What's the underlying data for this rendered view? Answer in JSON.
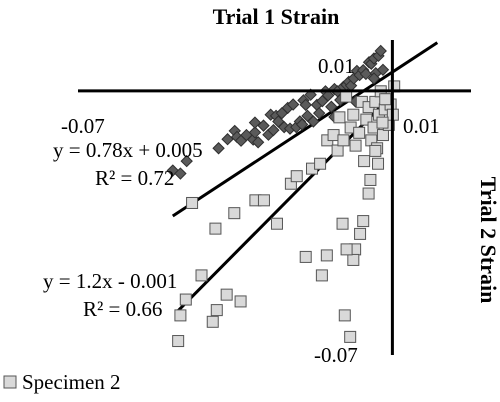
{
  "chart_data": {
    "type": "scatter",
    "xlabel": "Trial 1 Strain",
    "ylabel": "Trial 2 Strain",
    "xlim": [
      -0.07,
      0.0175
    ],
    "ylim": [
      -0.07,
      0.0135
    ],
    "axis_crossing": [
      0,
      0
    ],
    "tick_labels": {
      "x_min": "-0.07",
      "x_max": "0.01",
      "y_max": "0.01",
      "y_min": "-0.07"
    },
    "legend": {
      "position": "bottom-left",
      "visible_entry": "Specimen 2"
    },
    "series": [
      {
        "name": "",
        "marker": "diamond",
        "color": "#5a5a5a",
        "points": [
          [
            -0.0489,
            -0.0211
          ],
          [
            -0.0472,
            -0.0219
          ],
          [
            -0.0458,
            -0.0186
          ],
          [
            -0.0387,
            -0.0152
          ],
          [
            -0.0367,
            -0.0128
          ],
          [
            -0.0351,
            -0.0106
          ],
          [
            -0.0346,
            -0.0122
          ],
          [
            -0.0337,
            -0.0132
          ],
          [
            -0.0325,
            -0.0117
          ],
          [
            -0.031,
            -0.0129
          ],
          [
            -0.0306,
            -0.011
          ],
          [
            -0.0299,
            -0.0136
          ],
          [
            -0.0287,
            -0.0092
          ],
          [
            -0.0276,
            -0.0116
          ],
          [
            -0.0271,
            -0.0063
          ],
          [
            -0.0259,
            -0.0066
          ],
          [
            -0.0254,
            -0.0081
          ],
          [
            -0.0246,
            -0.0059
          ],
          [
            -0.0241,
            -0.0096
          ],
          [
            -0.0233,
            -0.0045
          ],
          [
            -0.0228,
            -0.01
          ],
          [
            -0.0221,
            -0.0036
          ],
          [
            -0.0214,
            -0.0096
          ],
          [
            -0.0206,
            -0.0081
          ],
          [
            -0.0201,
            -0.0089
          ],
          [
            -0.0198,
            -0.0025
          ],
          [
            -0.0189,
            -0.0066
          ],
          [
            -0.0182,
            -0.001
          ],
          [
            -0.0176,
            -0.0081
          ],
          [
            -0.0168,
            -0.0037
          ],
          [
            -0.0163,
            -0.0059
          ],
          [
            -0.0156,
            -0.0027
          ],
          [
            -0.0149,
            -0.0001
          ],
          [
            -0.0143,
            -0.0012
          ],
          [
            -0.0136,
            -0.0042
          ],
          [
            -0.0129,
            0.0005
          ],
          [
            -0.0122,
            -0.0001
          ],
          [
            -0.0116,
            -0.0024
          ],
          [
            -0.0109,
            0.0011
          ],
          [
            -0.0102,
            0.0016
          ],
          [
            -0.0097,
            0.0024
          ],
          [
            -0.0092,
            0.0014
          ],
          [
            -0.0086,
            0.0033
          ],
          [
            -0.0079,
            0.0053
          ],
          [
            -0.0073,
            0.0042
          ],
          [
            -0.0065,
            0.0055
          ],
          [
            -0.0059,
            0.0045
          ],
          [
            -0.0052,
            0.0076
          ],
          [
            -0.0047,
            0.0072
          ],
          [
            -0.0041,
            0.0086
          ],
          [
            -0.0037,
            0.0047
          ],
          [
            -0.0031,
            0.0093
          ],
          [
            -0.0026,
            0.0106
          ],
          [
            -0.0021,
            0.0056
          ],
          [
            -0.0306,
            -0.0084
          ],
          [
            -0.0265,
            -0.0104
          ],
          [
            -0.0193,
            -0.0037
          ],
          [
            -0.0129,
            -0.0069
          ],
          [
            -0.0082,
            -0.0028
          ],
          [
            -0.0041,
            0.0033
          ]
        ],
        "trendline": {
          "equation": "y = 0.78x + 0.005",
          "r2_label": "R² = 0.72",
          "slope": 0.78,
          "intercept": 0.005,
          "x_range": [
            -0.0489,
            0.01
          ]
        }
      },
      {
        "name": "Specimen 2",
        "marker": "square",
        "color": "#d9d9d9",
        "points": [
          [
            -0.0477,
            -0.0663
          ],
          [
            -0.0472,
            -0.0595
          ],
          [
            -0.046,
            -0.0553
          ],
          [
            -0.0425,
            -0.0489
          ],
          [
            -0.04,
            -0.0612
          ],
          [
            -0.0391,
            -0.0581
          ],
          [
            -0.0369,
            -0.054
          ],
          [
            -0.0338,
            -0.0558
          ],
          [
            -0.0446,
            -0.0297
          ],
          [
            -0.0394,
            -0.0365
          ],
          [
            -0.0352,
            -0.0324
          ],
          [
            -0.0305,
            -0.029
          ],
          [
            -0.0286,
            -0.029
          ],
          [
            -0.0257,
            -0.0352
          ],
          [
            -0.0226,
            -0.0246
          ],
          [
            -0.0213,
            -0.0226
          ],
          [
            -0.0179,
            -0.0206
          ],
          [
            -0.0161,
            -0.0193
          ],
          [
            -0.0145,
            -0.0131
          ],
          [
            -0.0131,
            -0.0117
          ],
          [
            -0.0122,
            -0.0158
          ],
          [
            -0.0118,
            -0.007
          ],
          [
            -0.0109,
            -0.0131
          ],
          [
            -0.0103,
            -0.0015
          ],
          [
            -0.0093,
            -0.0097
          ],
          [
            -0.0087,
            -0.0063
          ],
          [
            -0.0082,
            -0.0145
          ],
          [
            -0.0074,
            -0.0111
          ],
          [
            -0.0068,
            -0.0029
          ],
          [
            -0.0063,
            -0.0186
          ],
          [
            -0.0058,
            -0.0076
          ],
          [
            -0.0053,
            -0.0043
          ],
          [
            -0.0047,
            -0.0131
          ],
          [
            -0.0042,
            -0.0097
          ],
          [
            -0.0038,
            -0.0029
          ],
          [
            -0.0034,
            -0.0152
          ],
          [
            -0.003,
            -0.0063
          ],
          [
            -0.0026,
            -0.0001
          ],
          [
            -0.0021,
            -0.0117
          ],
          [
            -0.0017,
            -0.0049
          ],
          [
            -0.0012,
            -0.0022
          ],
          [
            -0.0008,
            -0.009
          ],
          [
            -0.0004,
            -0.0036
          ],
          [
            0.0001,
            -0.0063
          ],
          [
            0.0004,
            0.0012
          ],
          [
            -0.0016,
            -0.0022
          ],
          [
            -0.0022,
            -0.0084
          ],
          [
            -0.0032,
            -0.0193
          ],
          [
            -0.0053,
            -0.0272
          ],
          [
            -0.0072,
            -0.0379
          ],
          [
            -0.0083,
            -0.042
          ],
          [
            -0.0087,
            -0.0448
          ],
          [
            -0.0102,
            -0.042
          ],
          [
            -0.0111,
            -0.0352
          ],
          [
            -0.0157,
            -0.0489
          ],
          [
            -0.0146,
            -0.0436
          ],
          [
            -0.0193,
            -0.044
          ],
          [
            -0.0106,
            -0.0595
          ],
          [
            -0.0065,
            -0.0345
          ],
          [
            -0.0094,
            -0.0652
          ],
          [
            -0.0049,
            -0.0236
          ],
          [
            -0.0038,
            -0.0159
          ]
        ],
        "trendline": {
          "equation": "y = 1.2x - 0.001",
          "r2_label": "R² = 0.66",
          "slope": 1.2,
          "intercept": -0.001,
          "x_range": [
            -0.0477,
            0.0
          ]
        }
      }
    ]
  }
}
